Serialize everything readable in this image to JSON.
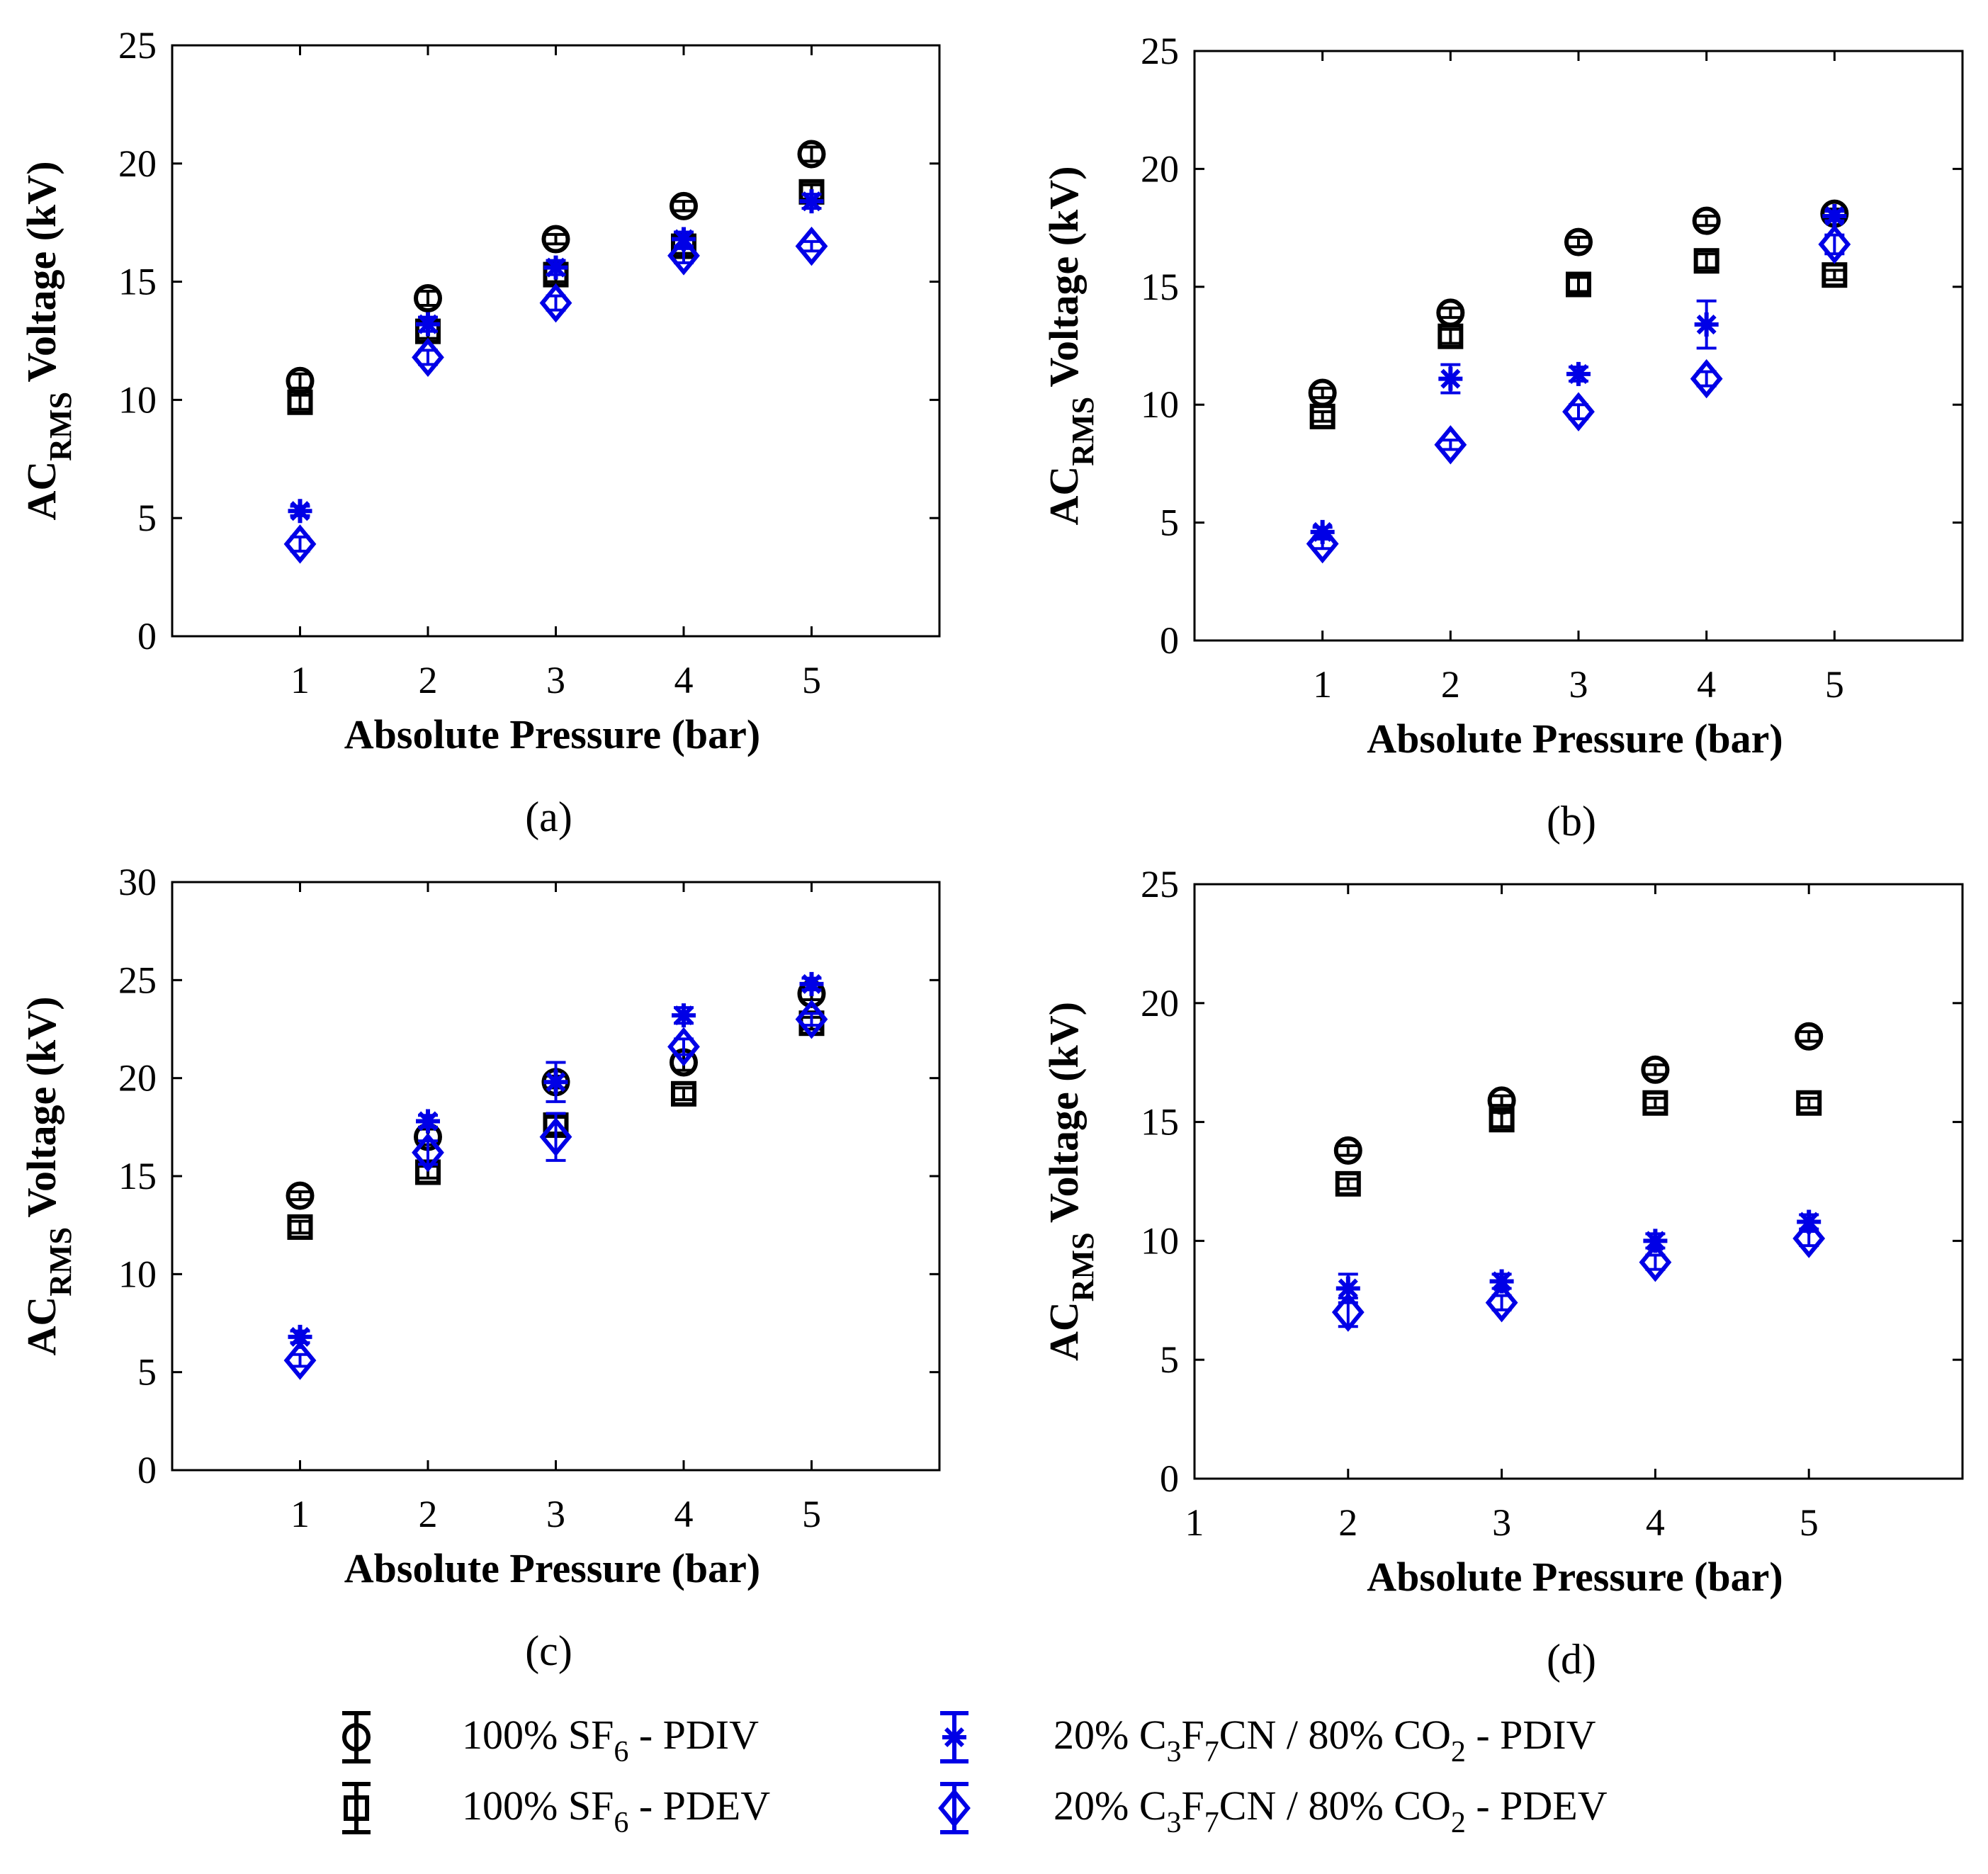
{
  "colors": {
    "sf6": "#000000",
    "c3f7cn": "#0000e6"
  },
  "legend": [
    {
      "label": "100% SF6 - PDIV",
      "color": "#000000",
      "marker": "circle"
    },
    {
      "label": "100% SF6 - PDEV",
      "color": "#000000",
      "marker": "square"
    },
    {
      "label": "20% C3F7CN / 80% CO2 - PDIV",
      "color": "#0000e6",
      "marker": "star"
    },
    {
      "label": "20% C3F7CN / 80% CO2 - PDEV",
      "color": "#0000e6",
      "marker": "diamond"
    }
  ],
  "chart_data": [
    {
      "type": "scatter",
      "panel": "(a)",
      "xlabel": "Absolute Pressure (bar)",
      "ylabel": "AC RMS Voltage (kV)",
      "ylabel_main": "AC",
      "ylabel_sub": "RMS",
      "ylabel_rest": " Voltage (kV)",
      "xlim": [
        0,
        6
      ],
      "ylim": [
        0,
        25
      ],
      "xticks": [
        1,
        2,
        3,
        4,
        5
      ],
      "yticks": [
        0,
        5,
        10,
        15,
        20,
        25
      ],
      "series": [
        {
          "name": "100% SF6 - PDIV",
          "marker": "circle",
          "color": "#000000",
          "x": [
            1,
            2,
            3,
            4,
            5
          ],
          "y": [
            10.8,
            14.3,
            16.8,
            18.2,
            20.4
          ],
          "err": [
            0.3,
            0.3,
            0.2,
            0.2,
            0.3
          ]
        },
        {
          "name": "100% SF6 - PDEV",
          "marker": "square",
          "color": "#000000",
          "x": [
            1,
            2,
            3,
            4,
            5
          ],
          "y": [
            9.9,
            12.9,
            15.3,
            16.5,
            18.8
          ],
          "err": [
            0.3,
            0.3,
            0.3,
            0.3,
            0.3
          ]
        },
        {
          "name": "20% C3F7CN / 80% CO2 - PDIV",
          "marker": "star",
          "color": "#0000e6",
          "x": [
            1,
            2,
            3,
            4,
            5
          ],
          "y": [
            5.3,
            13.2,
            15.6,
            16.8,
            18.4
          ],
          "err": [
            0.2,
            0.3,
            0.3,
            0.3,
            0.3
          ]
        },
        {
          "name": "20% C3F7CN / 80% CO2 - PDEV",
          "marker": "diamond",
          "color": "#0000e6",
          "x": [
            1,
            2,
            3,
            4,
            5
          ],
          "y": [
            3.9,
            11.8,
            14.1,
            16.1,
            16.5
          ],
          "err": [
            0.3,
            0.3,
            0.3,
            0.3,
            0.2
          ]
        }
      ]
    },
    {
      "type": "scatter",
      "panel": "(b)",
      "xlabel": "Absolute Pressure (bar)",
      "ylabel": "AC RMS Voltage (kV)",
      "ylabel_main": "AC",
      "ylabel_sub": "RMS",
      "ylabel_rest": " Voltage (kV)",
      "xlim": [
        0,
        6
      ],
      "ylim": [
        0,
        25
      ],
      "xticks": [
        1,
        2,
        3,
        4,
        5
      ],
      "yticks": [
        0,
        5,
        10,
        15,
        20,
        25
      ],
      "series": [
        {
          "name": "100% SF6 - PDIV",
          "marker": "circle",
          "color": "#000000",
          "x": [
            1,
            2,
            3,
            4,
            5
          ],
          "y": [
            10.5,
            13.9,
            16.9,
            17.8,
            18.1
          ],
          "err": [
            0.2,
            0.2,
            0.2,
            0.2,
            0.2
          ]
        },
        {
          "name": "100% SF6 - PDEV",
          "marker": "square",
          "color": "#000000",
          "x": [
            1,
            2,
            3,
            4,
            5
          ],
          "y": [
            9.5,
            12.9,
            15.1,
            16.1,
            15.5
          ],
          "err": [
            0.2,
            0.3,
            0.3,
            0.3,
            0.2
          ]
        },
        {
          "name": "20% C3F7CN / 80% CO2 - PDIV",
          "marker": "star",
          "color": "#0000e6",
          "x": [
            1,
            2,
            3,
            4,
            5
          ],
          "y": [
            4.6,
            11.1,
            11.3,
            13.4,
            18.0
          ],
          "err": [
            0.2,
            0.6,
            0.3,
            1.0,
            0.2
          ]
        },
        {
          "name": "20% C3F7CN / 80% CO2 - PDEV",
          "marker": "diamond",
          "color": "#0000e6",
          "x": [
            1,
            2,
            3,
            4,
            5
          ],
          "y": [
            4.1,
            8.3,
            9.7,
            11.1,
            16.8
          ],
          "err": [
            0.2,
            0.2,
            0.3,
            0.3,
            0.4
          ]
        }
      ]
    },
    {
      "type": "scatter",
      "panel": "(c)",
      "xlabel": "Absolute Pressure (bar)",
      "ylabel": "AC RMS Voltage (kV)",
      "ylabel_main": "AC",
      "ylabel_sub": "RMS",
      "ylabel_rest": " Voltage (kV)",
      "xlim": [
        0,
        6
      ],
      "ylim": [
        0,
        30
      ],
      "xticks": [
        1,
        2,
        3,
        4,
        5
      ],
      "yticks": [
        0,
        5,
        10,
        15,
        20,
        25,
        30
      ],
      "series": [
        {
          "name": "100% SF6 - PDIV",
          "marker": "circle",
          "color": "#000000",
          "x": [
            1,
            2,
            3,
            4,
            5
          ],
          "y": [
            14.0,
            17.0,
            19.8,
            20.8,
            24.3
          ],
          "err": [
            0.2,
            0.4,
            0.3,
            0.4,
            0.3
          ]
        },
        {
          "name": "100% SF6 - PDEV",
          "marker": "square",
          "color": "#000000",
          "x": [
            1,
            2,
            3,
            4,
            5
          ],
          "y": [
            12.4,
            15.2,
            17.6,
            19.2,
            22.8
          ],
          "err": [
            0.3,
            0.3,
            0.4,
            0.3,
            0.3
          ]
        },
        {
          "name": "20% C3F7CN / 80% CO2 - PDIV",
          "marker": "star",
          "color": "#0000e6",
          "x": [
            1,
            2,
            3,
            4,
            5
          ],
          "y": [
            6.8,
            17.8,
            19.8,
            23.2,
            24.8
          ],
          "err": [
            0.3,
            0.3,
            1.0,
            0.4,
            0.3
          ]
        },
        {
          "name": "20% C3F7CN / 80% CO2 - PDEV",
          "marker": "diamond",
          "color": "#0000e6",
          "x": [
            1,
            2,
            3,
            4,
            5
          ],
          "y": [
            5.6,
            16.2,
            17.0,
            21.6,
            23.0
          ],
          "err": [
            0.3,
            0.6,
            1.2,
            0.4,
            0.3
          ]
        }
      ]
    },
    {
      "type": "scatter",
      "panel": "(d)",
      "xlabel": "Absolute Pressure (bar)",
      "ylabel": "AC RMS Voltage (kV)",
      "ylabel_main": "AC",
      "ylabel_sub": "RMS",
      "ylabel_rest": " Voltage (kV)",
      "xlim": [
        1,
        6
      ],
      "ylim": [
        0,
        25
      ],
      "xticks": [
        1,
        2,
        3,
        4,
        5
      ],
      "yticks": [
        0,
        5,
        10,
        15,
        20,
        25
      ],
      "series": [
        {
          "name": "100% SF6 - PDIV",
          "marker": "circle",
          "color": "#000000",
          "x": [
            2,
            3,
            4,
            5
          ],
          "y": [
            13.8,
            15.9,
            17.2,
            18.6
          ],
          "err": [
            0.2,
            0.2,
            0.2,
            0.2
          ]
        },
        {
          "name": "100% SF6 - PDEV",
          "marker": "square",
          "color": "#000000",
          "x": [
            2,
            3,
            4,
            5
          ],
          "y": [
            12.4,
            15.1,
            15.8,
            15.8
          ],
          "err": [
            0.2,
            0.3,
            0.2,
            0.2
          ]
        },
        {
          "name": "20% C3F7CN / 80% CO2 - PDIV",
          "marker": "star",
          "color": "#0000e6",
          "x": [
            2,
            3,
            4,
            5
          ],
          "y": [
            8.0,
            8.3,
            10.0,
            10.8
          ],
          "err": [
            0.6,
            0.3,
            0.3,
            0.3
          ]
        },
        {
          "name": "20% C3F7CN / 80% CO2 - PDEV",
          "marker": "diamond",
          "color": "#0000e6",
          "x": [
            2,
            3,
            4,
            5
          ],
          "y": [
            7.0,
            7.4,
            9.1,
            10.1
          ],
          "err": [
            0.6,
            0.3,
            0.3,
            0.3
          ]
        }
      ]
    }
  ]
}
